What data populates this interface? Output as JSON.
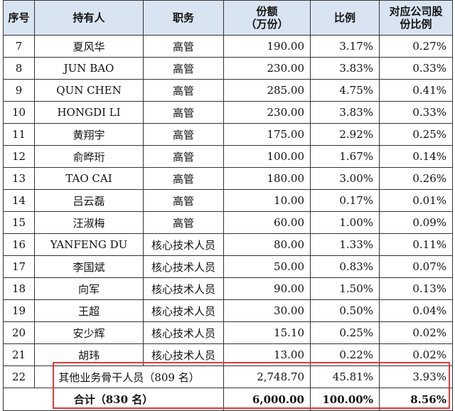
{
  "headers": {
    "index": "序号",
    "holder": "持有人",
    "role": "职务",
    "amount_line1": "份额",
    "amount_line2": "（万份）",
    "ratio": "比例",
    "share_line1": "对应公司股",
    "share_line2": "份比例"
  },
  "rows": [
    {
      "index": "7",
      "holder": "夏风华",
      "role": "高管",
      "amount": "190.00",
      "ratio": "3.17%",
      "share": "0.27%"
    },
    {
      "index": "8",
      "holder": "JUN BAO",
      "role": "高管",
      "amount": "230.00",
      "ratio": "3.83%",
      "share": "0.33%"
    },
    {
      "index": "9",
      "holder": "QUN CHEN",
      "role": "高管",
      "amount": "285.00",
      "ratio": "4.75%",
      "share": "0.41%"
    },
    {
      "index": "10",
      "holder": "HONGDI LI",
      "role": "高管",
      "amount": "230.00",
      "ratio": "3.83%",
      "share": "0.33%"
    },
    {
      "index": "11",
      "holder": "黄翔宇",
      "role": "高管",
      "amount": "175.00",
      "ratio": "2.92%",
      "share": "0.25%"
    },
    {
      "index": "12",
      "holder": "俞晔珩",
      "role": "高管",
      "amount": "100.00",
      "ratio": "1.67%",
      "share": "0.14%"
    },
    {
      "index": "13",
      "holder": "TAO CAI",
      "role": "高管",
      "amount": "180.00",
      "ratio": "3.00%",
      "share": "0.26%"
    },
    {
      "index": "14",
      "holder": "吕云磊",
      "role": "高管",
      "amount": "10.00",
      "ratio": "0.17%",
      "share": "0.01%"
    },
    {
      "index": "15",
      "holder": "汪淑梅",
      "role": "高管",
      "amount": "60.00",
      "ratio": "1.00%",
      "share": "0.09%"
    },
    {
      "index": "16",
      "holder": "YANFENG DU",
      "role": "核心技术人员",
      "amount": "80.00",
      "ratio": "1.33%",
      "share": "0.11%"
    },
    {
      "index": "17",
      "holder": "李国斌",
      "role": "核心技术人员",
      "amount": "50.00",
      "ratio": "0.83%",
      "share": "0.07%"
    },
    {
      "index": "18",
      "holder": "向军",
      "role": "核心技术人员",
      "amount": "90.00",
      "ratio": "1.50%",
      "share": "0.13%"
    },
    {
      "index": "19",
      "holder": "王超",
      "role": "核心技术人员",
      "amount": "30.00",
      "ratio": "0.50%",
      "share": "0.04%"
    },
    {
      "index": "20",
      "holder": "安少辉",
      "role": "核心技术人员",
      "amount": "15.10",
      "ratio": "0.25%",
      "share": "0.02%"
    },
    {
      "index": "21",
      "holder": "胡玮",
      "role": "核心技术人员",
      "amount": "13.00",
      "ratio": "0.22%",
      "share": "0.02%"
    }
  ],
  "other_row": {
    "index": "22",
    "holder": "其他业务骨干人员（809 名）",
    "amount": "2,748.70",
    "ratio": "45.81%",
    "share": "3.93%"
  },
  "total_row": {
    "label": "合计（830 名）",
    "amount": "6,000.00",
    "ratio": "100.00%",
    "share": "8.56%"
  },
  "highlight_color": "#e03c3c",
  "header_bg": "#d9e4f2"
}
